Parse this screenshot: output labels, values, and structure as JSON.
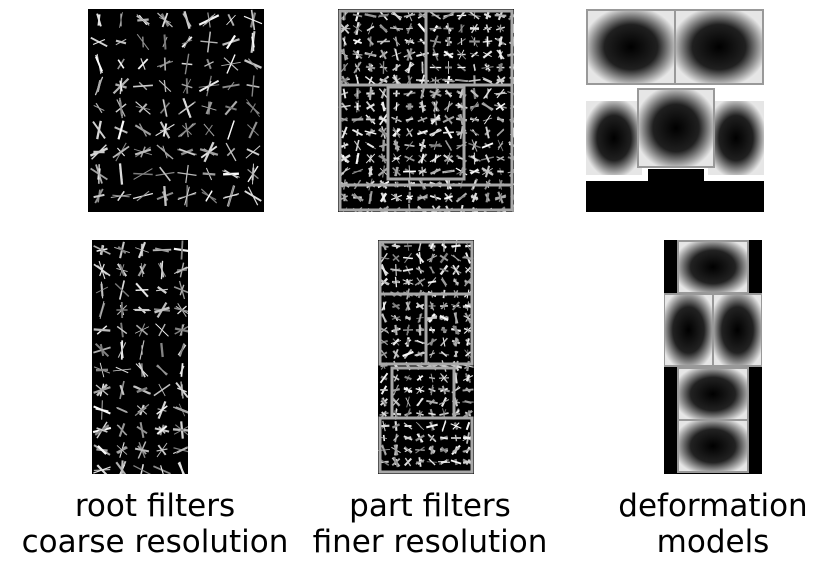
{
  "captions": {
    "root": {
      "line1": "root filters",
      "line2": "coarse resolution"
    },
    "part": {
      "line1": "part filters",
      "line2": "finer resolution"
    },
    "deform": {
      "line1": "deformation",
      "line2": "models"
    }
  },
  "colors": {
    "background": "#ffffff",
    "panel": "#000000",
    "stroke": "#ffffff",
    "frame": "#a0a0a0"
  }
}
